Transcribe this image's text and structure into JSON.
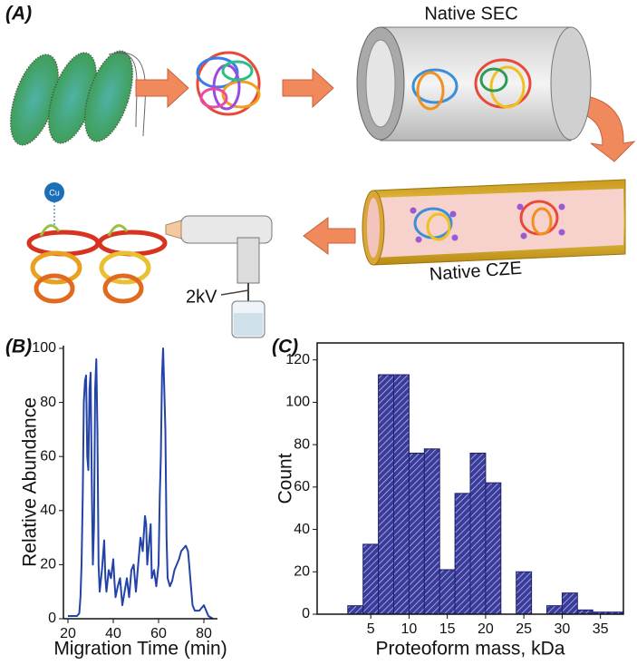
{
  "panel_a": {
    "label": "(A)",
    "sec_label": "Native SEC",
    "cze_label": "Native CZE",
    "voltage": "2kV",
    "metal": "Cu"
  },
  "chart_data": [
    {
      "type": "line",
      "panel": "(B)",
      "x_label": "Migration Time (min)",
      "y_label": "Relative Abundance",
      "x": [
        20,
        22,
        24,
        25,
        25.5,
        26,
        26.5,
        27,
        27.5,
        28,
        28.5,
        29,
        29.5,
        30,
        30.5,
        31,
        31.5,
        32,
        32.5,
        33,
        33.5,
        34,
        35,
        36,
        36.5,
        37,
        38,
        39,
        40,
        40.5,
        41,
        42,
        43,
        44,
        45,
        46,
        47,
        48,
        49,
        50,
        51,
        52,
        53,
        54,
        54.5,
        55,
        56,
        56.5,
        57,
        58,
        59,
        60,
        60.5,
        61,
        61.5,
        62,
        62.5,
        63,
        63.5,
        64,
        65,
        66,
        67,
        68,
        69,
        70,
        71,
        72,
        73,
        73.5,
        74,
        75,
        76,
        78,
        80,
        82,
        84
      ],
      "values": [
        1,
        1,
        1,
        2,
        8,
        20,
        45,
        80,
        88,
        90,
        60,
        55,
        85,
        91,
        50,
        20,
        35,
        85,
        96,
        70,
        20,
        10,
        18,
        29,
        15,
        10,
        18,
        15,
        22,
        14,
        8,
        12,
        15,
        5,
        10,
        15,
        8,
        18,
        20,
        10,
        20,
        30,
        25,
        38,
        35,
        20,
        30,
        35,
        15,
        18,
        12,
        20,
        45,
        60,
        90,
        100,
        85,
        70,
        30,
        15,
        12,
        14,
        18,
        20,
        22,
        25,
        26,
        27,
        25,
        20,
        15,
        5,
        3,
        3,
        5,
        1,
        0
      ],
      "color": "#2343a8",
      "xlim": [
        18,
        86
      ],
      "ylim": [
        0,
        101
      ],
      "xticks": [
        20,
        40,
        60,
        80
      ],
      "yticks": [
        0,
        20,
        40,
        60,
        80,
        100
      ]
    },
    {
      "type": "histogram",
      "panel": "(C)",
      "x_label": "Proteoform mass, kDa",
      "y_label": "Count",
      "bins": [
        2,
        4,
        6,
        8,
        10,
        12,
        14,
        16,
        18,
        20,
        22,
        24,
        26,
        28,
        30,
        32,
        34,
        36,
        38
      ],
      "counts": [
        4,
        33,
        113,
        113,
        76,
        78,
        21,
        57,
        76,
        62,
        0,
        20,
        0,
        4,
        10,
        2,
        1,
        1
      ],
      "color": "#3a3c9c",
      "xlim": [
        -2,
        38
      ],
      "ylim": [
        0,
        128
      ],
      "xticks": [
        5,
        10,
        15,
        20,
        25,
        30,
        35
      ],
      "yticks": [
        0,
        20,
        40,
        60,
        80,
        100,
        120
      ]
    }
  ]
}
